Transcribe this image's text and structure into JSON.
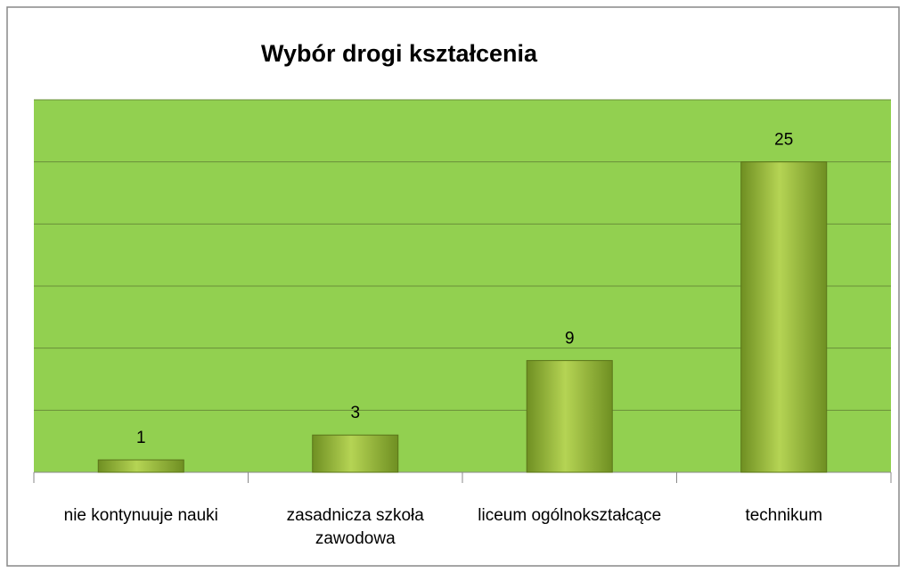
{
  "chart_data": {
    "type": "bar",
    "title": "Wybór drogi kształcenia",
    "categories": [
      "nie kontynuuje nauki",
      "zasadnicza szkoła zawodowa",
      "liceum ogólnokształcące",
      "technikum"
    ],
    "values": [
      1,
      3,
      9,
      25
    ],
    "color": "#8db33a",
    "background": "#92d050",
    "ylim": [
      0,
      30
    ],
    "yticks": [
      0,
      5,
      10,
      15,
      20,
      25,
      30
    ],
    "grid": true
  }
}
